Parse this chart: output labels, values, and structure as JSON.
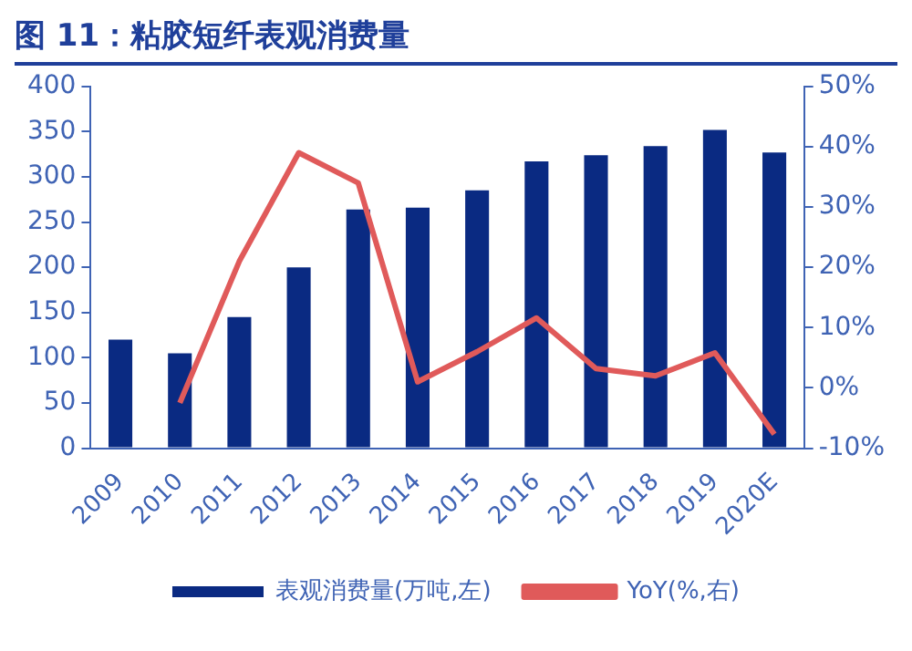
{
  "chart_data": {
    "type": "bar",
    "title": "图 11：粘胶短纤表观消费量",
    "categories": [
      "2009",
      "2010",
      "2011",
      "2012",
      "2013",
      "2014",
      "2015",
      "2016",
      "2017",
      "2018",
      "2019",
      "2020E"
    ],
    "series": [
      {
        "name": "表观消费量(万吨,左)",
        "color": "#0a2a82",
        "values": [
          120,
          105,
          145,
          200,
          264,
          266,
          285,
          317,
          324,
          334,
          352,
          327
        ]
      },
      {
        "name": "YoY(%,右)",
        "type": "line",
        "axis": "y2",
        "color": "#e05a5a",
        "values": [
          null,
          -2.5,
          21,
          39,
          34,
          1,
          6,
          11.6,
          3.2,
          2,
          5.8,
          -7.7
        ]
      }
    ],
    "ylim": [
      0,
      400
    ],
    "yticks": [
      0,
      50,
      100,
      150,
      200,
      250,
      300,
      350,
      400
    ],
    "y2lim": [
      -10,
      50
    ],
    "y2ticks": [
      {
        "value": -10,
        "label": "-10%"
      },
      {
        "value": 0,
        "label": "0%"
      },
      {
        "value": 10,
        "label": "10%"
      },
      {
        "value": 20,
        "label": "20%"
      },
      {
        "value": 30,
        "label": "30%"
      },
      {
        "value": 40,
        "label": "40%"
      },
      {
        "value": 50,
        "label": "50%"
      }
    ],
    "grid": false,
    "legend": "bottom",
    "marker": "none",
    "line_style": "solid"
  }
}
